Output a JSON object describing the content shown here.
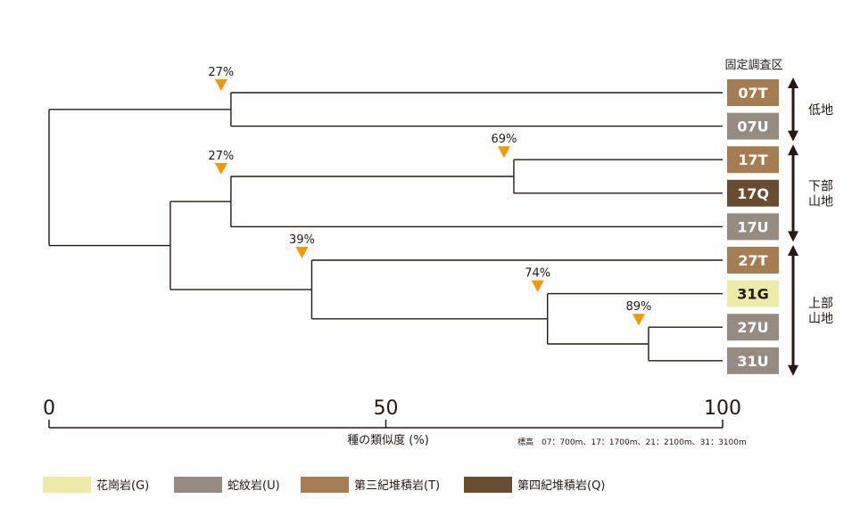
{
  "header": {
    "plot_group_title": "固定調査区"
  },
  "chart_data": {
    "type": "dendrogram",
    "xlabel": "種の類似度 (%)",
    "xlim": [
      0,
      100
    ],
    "ticks": [
      "0",
      "50",
      "100"
    ],
    "tick_values": [
      0,
      50,
      100
    ],
    "altitude_note": "標高　07：700m、17：1700m、21：2100m、31：3100m",
    "leaves": [
      {
        "label": "07T",
        "color": "#A67C52"
      },
      {
        "label": "07U",
        "color": "#958B80"
      },
      {
        "label": "17T",
        "color": "#A67C52"
      },
      {
        "label": "17Q",
        "color": "#6A4C30"
      },
      {
        "label": "17U",
        "color": "#958B80"
      },
      {
        "label": "27T",
        "color": "#A67C52"
      },
      {
        "label": "31G",
        "color": "#EDEBA7"
      },
      {
        "label": "27U",
        "color": "#958B80"
      },
      {
        "label": "31U",
        "color": "#958B80"
      }
    ],
    "merges": [
      {
        "left": "27U",
        "right": "31U",
        "similarity": 89,
        "label": "89%"
      },
      {
        "left": "31G",
        "right": "(27U,31U)",
        "similarity": 74,
        "label": "74%"
      },
      {
        "left": "27T",
        "right": "(31G,27U,31U)",
        "similarity": 39,
        "label": "39%"
      },
      {
        "left": "17T",
        "right": "17Q",
        "similarity": 69,
        "label": "69%"
      },
      {
        "left": "(17T,17Q)",
        "right": "17U",
        "similarity": 27,
        "label": "27%"
      },
      {
        "left": "07T",
        "right": "07U",
        "similarity": 27,
        "label": "27%"
      },
      {
        "left": "(17T,17Q,17U)",
        "right": "(27T,31G,27U,31U)",
        "similarity": 18
      },
      {
        "left": "(07T,07U)",
        "right": "(17…31U)",
        "similarity": 0
      }
    ],
    "zones": [
      {
        "lines": [
          "低地"
        ],
        "leaves": [
          "07T",
          "07U"
        ]
      },
      {
        "lines": [
          "下部",
          "山地"
        ],
        "leaves": [
          "17T",
          "17Q",
          "17U"
        ]
      },
      {
        "lines": [
          "上部",
          "山地"
        ],
        "leaves": [
          "27T",
          "31G",
          "27U",
          "31U"
        ]
      }
    ],
    "marker_color": "#F39800",
    "line_color": "#231815"
  },
  "legend": [
    {
      "label": "花崗岩(G)",
      "color": "#EDEBA7"
    },
    {
      "label": "蛇紋岩(U)",
      "color": "#958B80"
    },
    {
      "label": "第三紀堆積岩(T)",
      "color": "#A67C52"
    },
    {
      "label": "第四紀堆積岩(Q)",
      "color": "#6A4C30"
    }
  ]
}
